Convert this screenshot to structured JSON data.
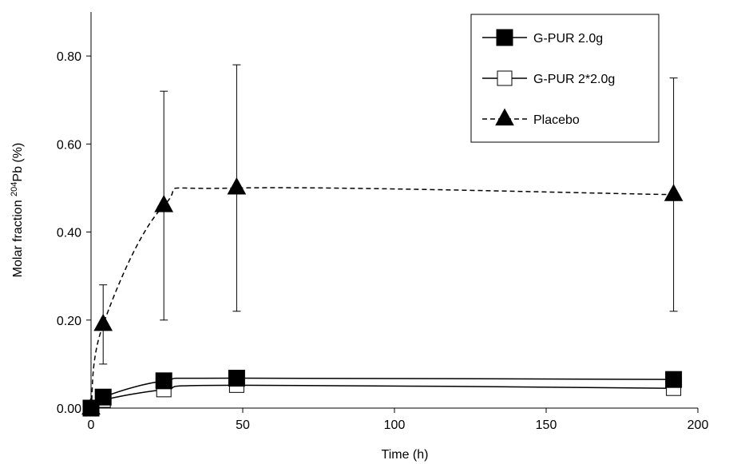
{
  "chart_data": {
    "type": "line",
    "title": "",
    "xlabel": "Time (h)",
    "ylabel_prefix": "Molar fraction ",
    "ylabel_sup": "204",
    "ylabel_suffix": "Pb (%)",
    "xlim": [
      0,
      200
    ],
    "ylim": [
      0,
      0.9
    ],
    "x_ticks": [
      0,
      50,
      100,
      150,
      200
    ],
    "y_ticks": [
      0,
      0.2,
      0.4,
      0.6,
      0.8
    ],
    "y_tick_labels": [
      "0.00",
      "0.20",
      "0.40",
      "0.60",
      "0.80"
    ],
    "grid": false,
    "legend_position": "top-right",
    "series": [
      {
        "name": "G-PUR 2.0g",
        "style": "solid",
        "marker": "filled-square",
        "x": [
          0,
          4,
          24,
          48,
          192
        ],
        "y": [
          0.0,
          0.025,
          0.062,
          0.068,
          0.065
        ],
        "err": [
          0,
          0,
          0,
          0,
          0
        ]
      },
      {
        "name": "G-PUR 2*2.0g",
        "style": "solid",
        "marker": "open-square",
        "x": [
          0,
          4,
          24,
          48,
          192
        ],
        "y": [
          0.0,
          0.018,
          0.042,
          0.052,
          0.045
        ],
        "err": [
          0,
          0,
          0,
          0,
          0
        ]
      },
      {
        "name": "Placebo",
        "style": "dashed",
        "marker": "filled-triangle",
        "x": [
          0,
          4,
          24,
          48,
          192
        ],
        "y": [
          0.0,
          0.19,
          0.46,
          0.5,
          0.485
        ],
        "err": [
          0,
          0.09,
          0.26,
          0.28,
          0.265
        ]
      }
    ]
  }
}
